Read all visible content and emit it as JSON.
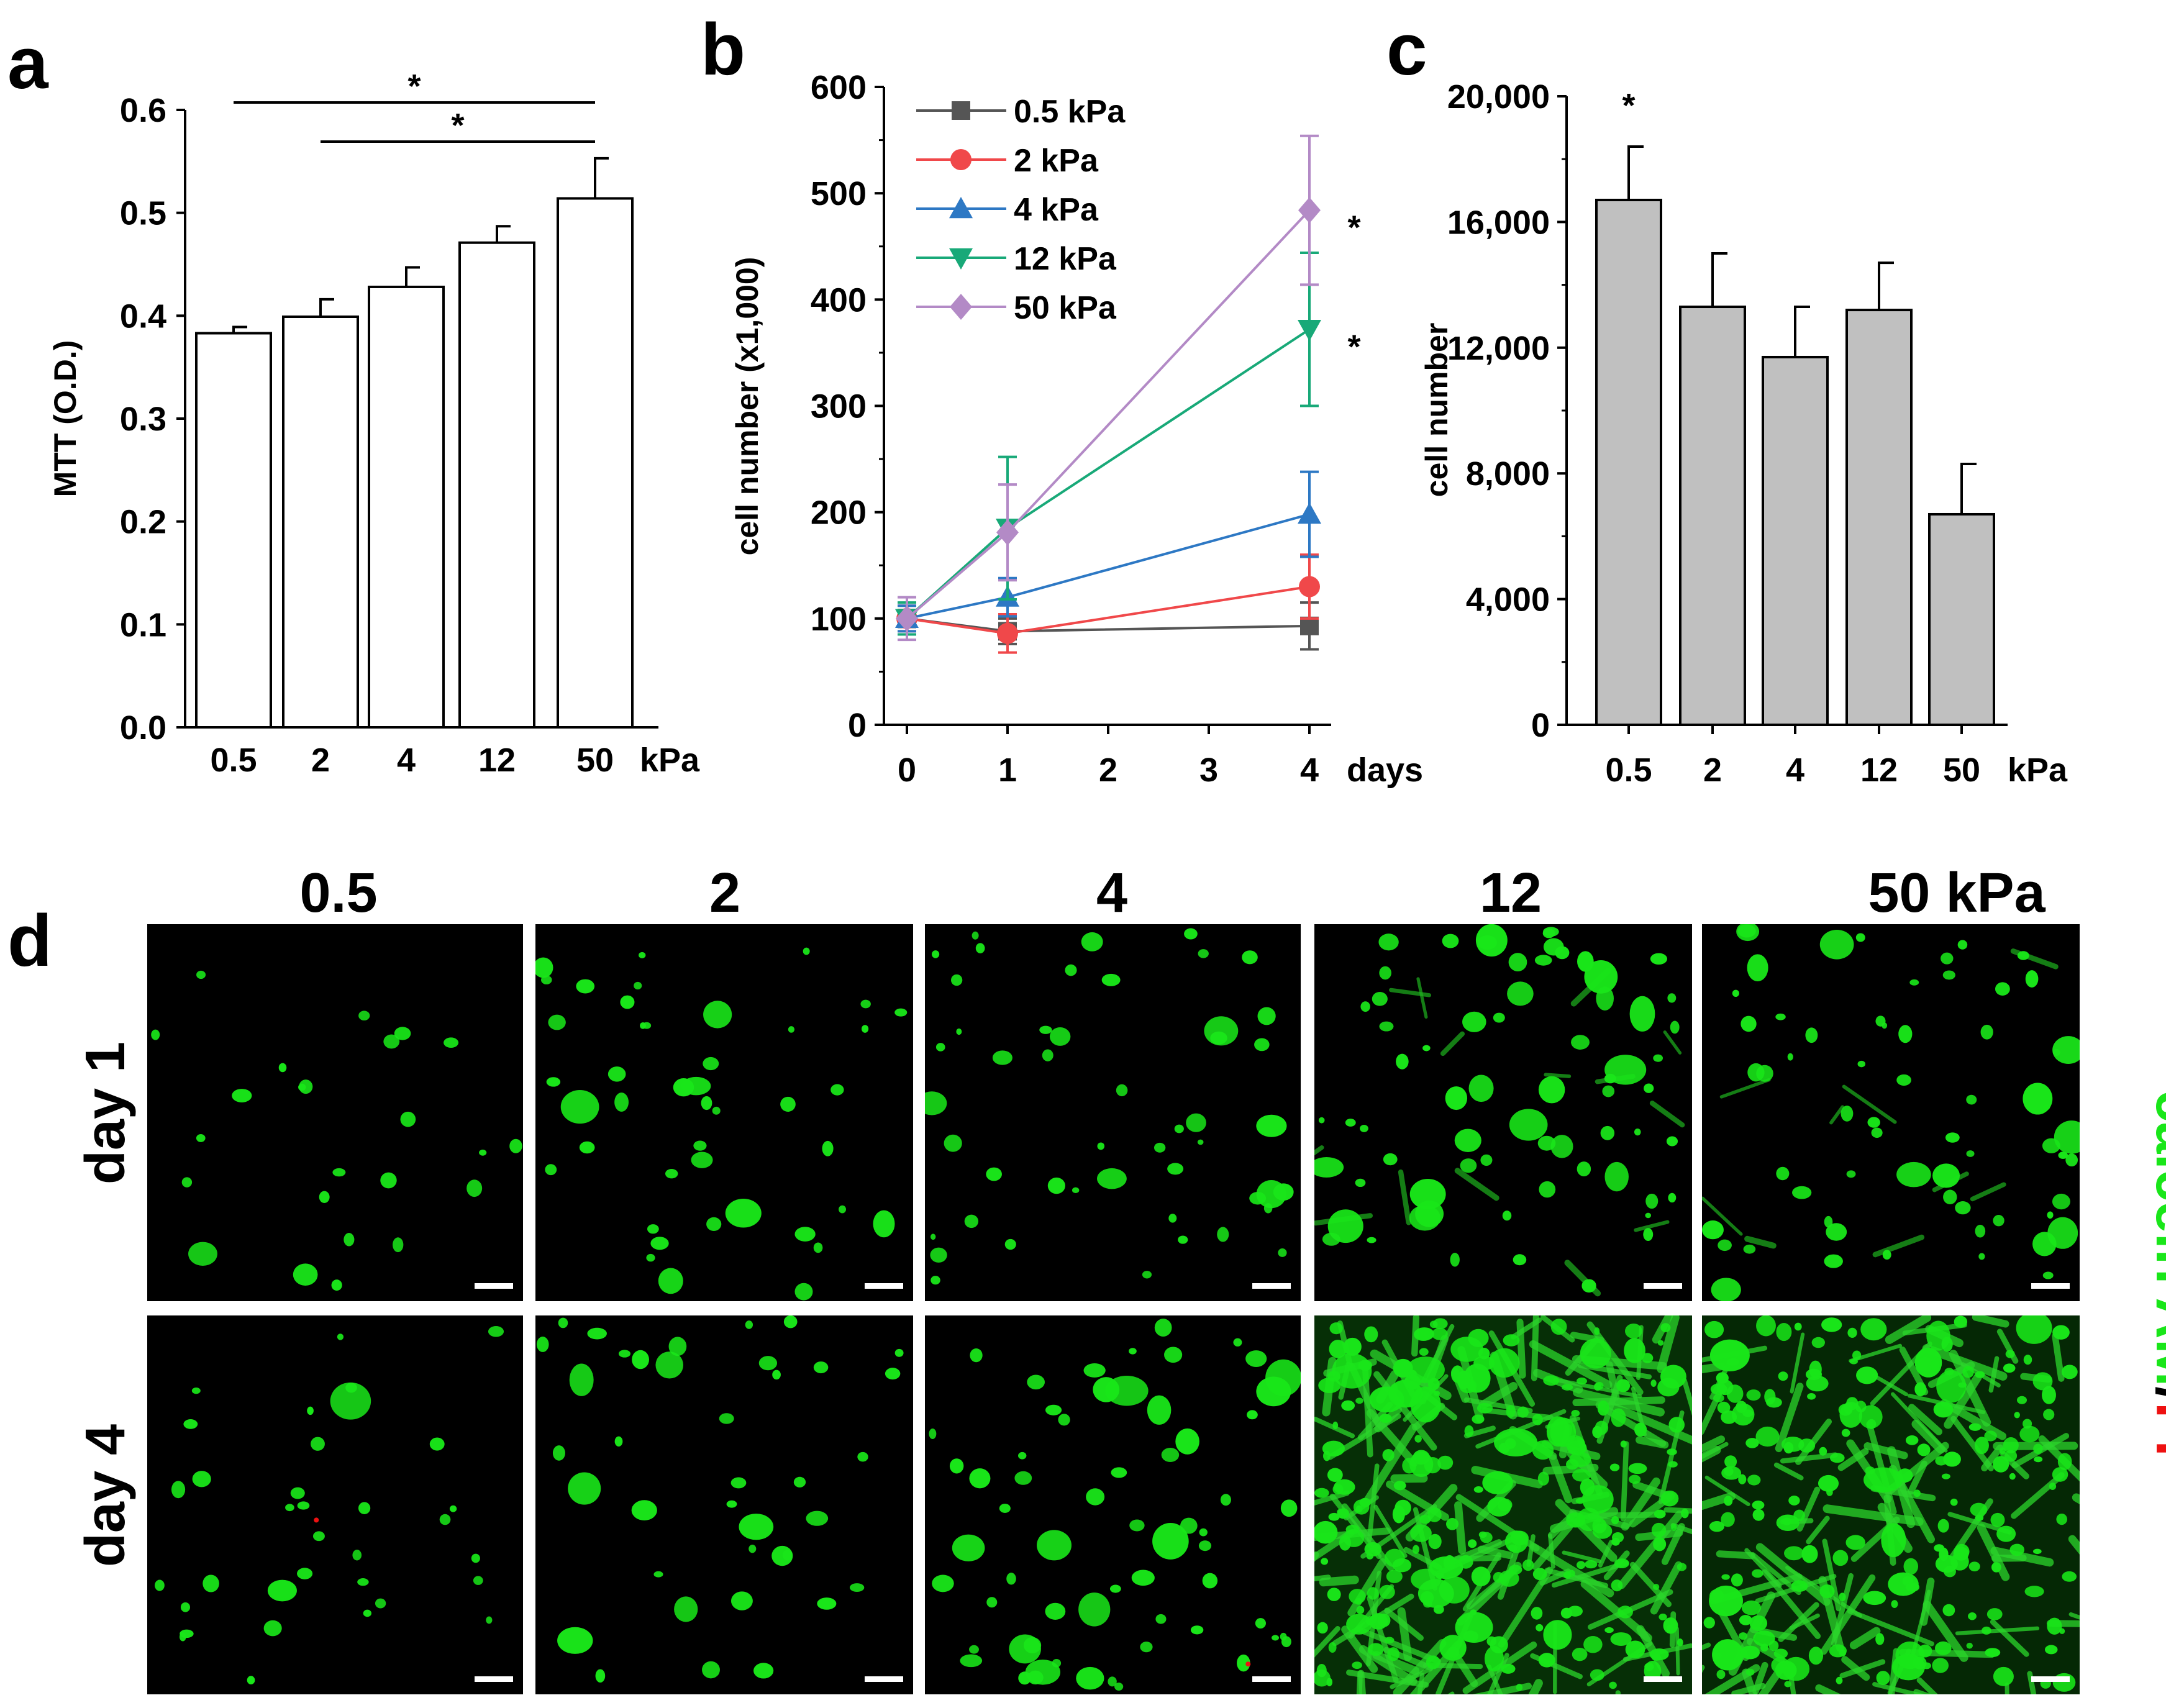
{
  "panels": {
    "a": "a",
    "b": "b",
    "c": "c",
    "d": "d"
  },
  "chart_data": [
    {
      "id": "a",
      "type": "bar",
      "categories": [
        "0.5",
        "2",
        "4",
        "12",
        "50"
      ],
      "values": [
        0.383,
        0.399,
        0.428,
        0.471,
        0.514
      ],
      "errors": [
        0.006,
        0.017,
        0.019,
        0.016,
        0.039
      ],
      "ylabel": "MTT (O.D.)",
      "xunit": "kPa",
      "ylim": [
        0,
        0.6
      ],
      "yticks": [
        "0.0",
        "0.1",
        "0.2",
        "0.3",
        "0.4",
        "0.5",
        "0.6"
      ],
      "bar_color": "#ffffff",
      "significance": [
        {
          "from": "0.5",
          "to": "50",
          "label": "*"
        },
        {
          "from": "2",
          "to": "50",
          "label": "*"
        }
      ]
    },
    {
      "id": "b",
      "type": "line",
      "x": [
        0,
        1,
        4
      ],
      "xticks": [
        "0",
        "1",
        "2",
        "3",
        "4"
      ],
      "xunit": "days",
      "ylabel": "cell number (x1,000)",
      "ylim": [
        0,
        600
      ],
      "yticks": [
        "0",
        "100",
        "200",
        "300",
        "400",
        "500",
        "600"
      ],
      "series": [
        {
          "name": "0.5 kPa",
          "color": "#555555",
          "marker": "square",
          "values": [
            100,
            88,
            93
          ],
          "errors": [
            8,
            12,
            22
          ]
        },
        {
          "name": "2 kPa",
          "color": "#f0484a",
          "marker": "circle",
          "values": [
            100,
            86,
            130
          ],
          "errors": [
            12,
            18,
            30
          ]
        },
        {
          "name": "4 kPa",
          "color": "#2d78c4",
          "marker": "triangle-up",
          "values": [
            100,
            120,
            198
          ],
          "errors": [
            12,
            18,
            40
          ]
        },
        {
          "name": "12 kPa",
          "color": "#18a978",
          "marker": "triangle-down",
          "values": [
            100,
            185,
            372
          ],
          "errors": [
            15,
            67,
            72
          ]
        },
        {
          "name": "50 kPa",
          "color": "#b38ac6",
          "marker": "diamond",
          "values": [
            100,
            181,
            484
          ],
          "errors": [
            20,
            45,
            70
          ]
        }
      ],
      "significance": [
        {
          "series": "50 kPa",
          "label": "*"
        },
        {
          "series": "12 kPa",
          "label": "*"
        }
      ]
    },
    {
      "id": "c",
      "type": "bar",
      "categories": [
        "0.5",
        "2",
        "4",
        "12",
        "50"
      ],
      "values": [
        16700,
        13300,
        11700,
        13200,
        6700
      ],
      "errors": [
        1700,
        1700,
        1600,
        1500,
        1600
      ],
      "ylabel": "cell number",
      "xunit": "kPa",
      "ylim": [
        0,
        20000
      ],
      "yticks": [
        "0",
        "4,000",
        "8,000",
        "12,000",
        "16,000",
        "20,000"
      ],
      "bar_color": "#c0c0c0",
      "significance": [
        {
          "category": "0.5",
          "label": "*"
        }
      ]
    }
  ],
  "micrographs": {
    "column_titles": [
      "0.5",
      "2",
      "4",
      "12",
      "50 kPa"
    ],
    "row_titles": [
      "day 1",
      "day 4"
    ],
    "stain_label": {
      "part1": "calcein AM",
      "separator": "/",
      "part2": "PI"
    },
    "stain_colors": {
      "live": "#19e619",
      "dead": "#ee1111",
      "separator": "#000000"
    },
    "density_grid": [
      [
        0.1,
        0.18,
        0.2,
        0.28,
        0.26
      ],
      [
        0.14,
        0.16,
        0.26,
        0.95,
        0.8
      ]
    ],
    "spread_grid": [
      [
        0.05,
        0.15,
        0.15,
        0.45,
        0.3
      ],
      [
        0.15,
        0.1,
        0.2,
        1.0,
        0.7
      ]
    ]
  }
}
